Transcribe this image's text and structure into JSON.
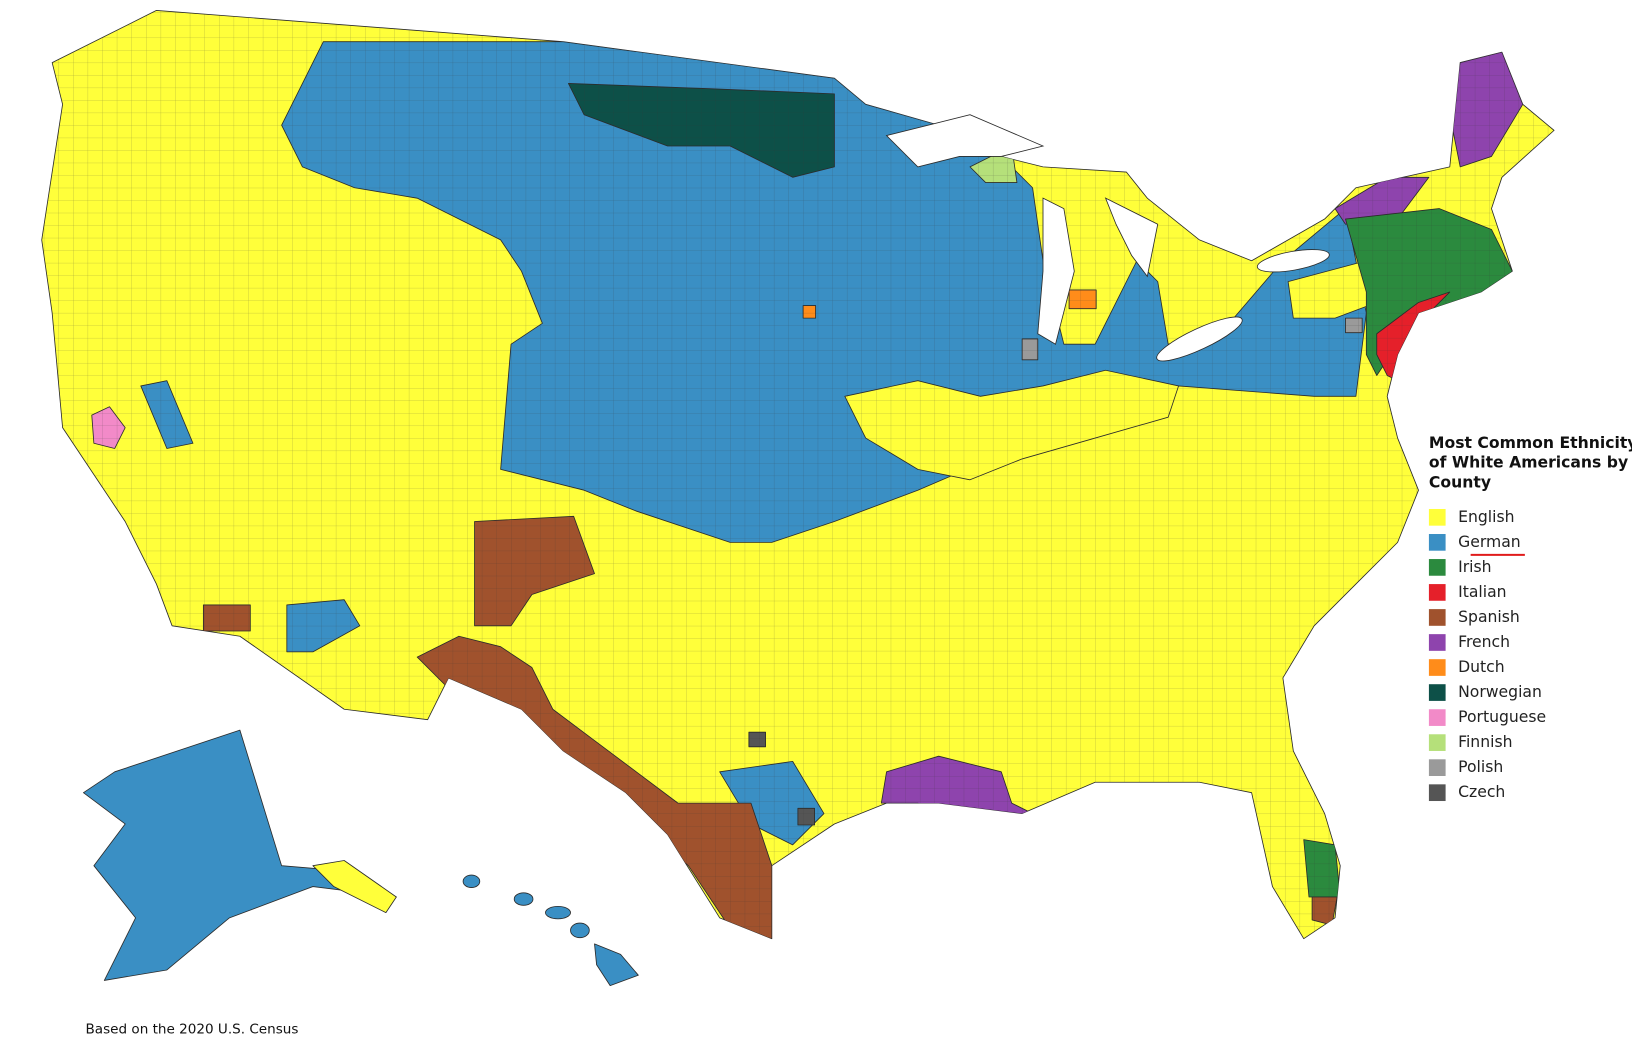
{
  "legend": {
    "title_lines": [
      "Most Common Ethnicity",
      "of White Americans by",
      "County"
    ],
    "items": [
      {
        "label": "English",
        "color": "#ffff3a"
      },
      {
        "label": "German",
        "color": "#3a8fc4"
      },
      {
        "label": "Irish",
        "color": "#2b8a3e"
      },
      {
        "label": "Italian",
        "color": "#e5202a"
      },
      {
        "label": "Spanish",
        "color": "#a0522d"
      },
      {
        "label": "French",
        "color": "#8e44ad"
      },
      {
        "label": "Dutch",
        "color": "#ff8c1a"
      },
      {
        "label": "Norwegian",
        "color": "#0d5048"
      },
      {
        "label": "Portuguese",
        "color": "#f28ac8"
      },
      {
        "label": "Finnish",
        "color": "#b5e07a"
      },
      {
        "label": "Polish",
        "color": "#9a9a9a"
      },
      {
        "label": "Czech",
        "color": "#555555"
      }
    ]
  },
  "source_note": "Based on the 2020 U.S. Census"
}
